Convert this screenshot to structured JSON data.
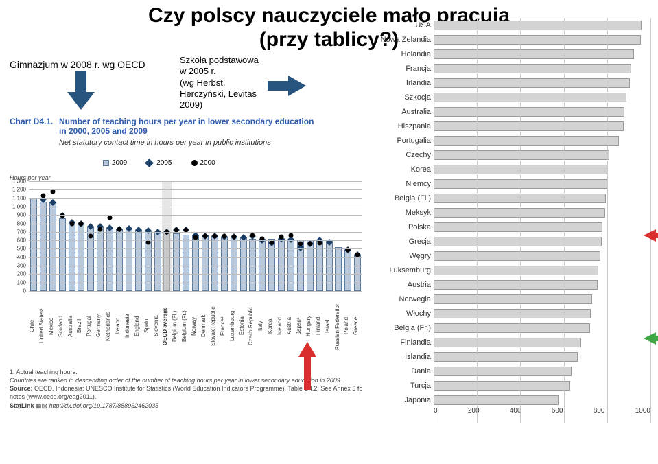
{
  "title_line1": "Czy polscy nauczyciele mało pracują",
  "title_line2": "(przy tablicy?)",
  "left_annotation": "Gimnazjum w 2008 r. wg OECD",
  "right_annotation": "Szkoła podstawowa\nw 2005 r.\n (wg Herbst,\nHerczyński, Levitas\n2009)",
  "chart_label_prefix": "Chart D4.1.",
  "chart_title": "Number of teaching hours per year in lower secondary education\nin 2000, 2005 and 2009",
  "chart_subtitle": "Net statutory contact time in hours per year in public institutions",
  "legend": {
    "y2009": "2009",
    "y2005": "2005",
    "y2000": "2000"
  },
  "y_axis_label": "Hours per year",
  "colors": {
    "bar_fill": "#b9c9dc",
    "bar_border": "#5b7a9f",
    "diamond": "#1a3e66",
    "circle": "#000000",
    "grid": "#bbbbbb",
    "hbar_fill": "#d3d3d3",
    "hbar_border": "#999999",
    "title_blue": "#2e5aac",
    "red_arrow": "#d92f2f",
    "green_arrow": "#3fa845",
    "blue_arrow": "#27547e"
  },
  "bar_chart": {
    "type": "bar",
    "ymin": 0,
    "ymax": 1300,
    "ytick_step": 100,
    "highlight_index": 14,
    "series": [
      {
        "label": "Chile",
        "v": 1100,
        "d": null,
        "c": null
      },
      {
        "label": "United States¹",
        "v": 1060,
        "d": 1080,
        "c": 1130
      },
      {
        "label": "Mexico",
        "v": 1050,
        "d": 1050,
        "c": 1180
      },
      {
        "label": "Scotland",
        "v": 860,
        "d": 890,
        "c": 890
      },
      {
        "label": "Australia",
        "v": 820,
        "d": 815,
        "c": 800
      },
      {
        "label": "Brazil",
        "v": 800,
        "d": 800,
        "c": 800
      },
      {
        "label": "Portugal",
        "v": 760,
        "d": 760,
        "c": 650
      },
      {
        "label": "Germany",
        "v": 760,
        "d": 760,
        "c": 730
      },
      {
        "label": "Netherlands",
        "v": 750,
        "d": 750,
        "c": 870
      },
      {
        "label": "Ireland",
        "v": 735,
        "d": 735,
        "c": 735
      },
      {
        "label": "Indonesia",
        "v": 730,
        "d": 740,
        "c": null
      },
      {
        "label": "England",
        "v": 720,
        "d": 720,
        "c": null
      },
      {
        "label": "Spain",
        "v": 715,
        "d": 715,
        "c": 580
      },
      {
        "label": "Slovenia",
        "v": 700,
        "d": 700,
        "c": null
      },
      {
        "label": "OECD average",
        "v": 690,
        "d": 700,
        "c": 700,
        "highlight": true,
        "bold": true
      },
      {
        "label": "Belgium (Fl.)",
        "v": 680,
        "d": 720,
        "c": 720
      },
      {
        "label": "Belgium (Fr.)",
        "v": 670,
        "d": 725,
        "c": 725
      },
      {
        "label": "Norway",
        "v": 660,
        "d": 660,
        "c": 635
      },
      {
        "label": "Denmark",
        "v": 660,
        "d": 650,
        "c": 650
      },
      {
        "label": "Slovak Republic",
        "v": 650,
        "d": 650,
        "c": 650
      },
      {
        "label": "France¹",
        "v": 645,
        "d": 640,
        "c": 650
      },
      {
        "label": "Luxembourg",
        "v": 640,
        "d": 640,
        "c": 640
      },
      {
        "label": "Estonia",
        "v": 630,
        "d": 630,
        "c": null
      },
      {
        "label": "Czech Republic",
        "v": 620,
        "d": 650,
        "c": 660
      },
      {
        "label": "Italy",
        "v": 620,
        "d": 605,
        "c": 620
      },
      {
        "label": "Korea",
        "v": 620,
        "d": 570,
        "c": 580
      },
      {
        "label": "Iceland",
        "v": 615,
        "d": 615,
        "c": 640
      },
      {
        "label": "Austria",
        "v": 610,
        "d": 610,
        "c": 660
      },
      {
        "label": "Japan¹",
        "v": 600,
        "d": 510,
        "c": 560
      },
      {
        "label": "Hungary",
        "v": 600,
        "d": 560,
        "c": 560
      },
      {
        "label": "Finland",
        "v": 590,
        "d": 600,
        "c": 570
      },
      {
        "label": "Israel",
        "v": 590,
        "d": 580,
        "c": null
      },
      {
        "label": "Russian Federation",
        "v": 520,
        "d": null,
        "c": null
      },
      {
        "label": "Poland",
        "v": 490,
        "d": 490,
        "c": 490
      },
      {
        "label": "Greece",
        "v": 430,
        "d": 430,
        "c": 430
      }
    ]
  },
  "footnote1": "1. Actual teaching hours.",
  "footnote2": "Countries are ranked in descending order of the number of teaching hours per year in lower secondary education in 2009.",
  "footnote3_label": "Source:",
  "footnote3_rest": " OECD. Indonesia: UNESCO Institute for Statistics (World Education Indicators Programme). Table D4.2. See Annex 3 fo notes (www.oecd.org/eag2011).",
  "footnote4_label": "StatLink ",
  "footnote4_url": "http://dx.doi.org/10.1787/888932462035",
  "hbar_chart": {
    "type": "bar_horizontal",
    "xmin": 0,
    "xmax": 1000,
    "xtick_step": 200,
    "items": [
      {
        "label": "USA",
        "v": 960
      },
      {
        "label": "Nowa Zelandia",
        "v": 955
      },
      {
        "label": "Holandia",
        "v": 925
      },
      {
        "label": "Francja",
        "v": 910
      },
      {
        "label": "Irlandia",
        "v": 905
      },
      {
        "label": "Szkocja",
        "v": 890
      },
      {
        "label": "Australia",
        "v": 880
      },
      {
        "label": "Hiszpania",
        "v": 875
      },
      {
        "label": "Portugalia",
        "v": 855
      },
      {
        "label": "Czechy",
        "v": 810
      },
      {
        "label": "Korea",
        "v": 805
      },
      {
        "label": "Niemcy",
        "v": 800
      },
      {
        "label": "Belgia (Fl.)",
        "v": 795
      },
      {
        "label": "Meksyk",
        "v": 790
      },
      {
        "label": "Polska",
        "v": 780
      },
      {
        "label": "Grecja",
        "v": 775
      },
      {
        "label": "Węgry",
        "v": 770
      },
      {
        "label": "Luksemburg",
        "v": 760
      },
      {
        "label": "Austria",
        "v": 755
      },
      {
        "label": "Norwegia",
        "v": 730
      },
      {
        "label": "Włochy",
        "v": 725
      },
      {
        "label": "Belgia (Fr.)",
        "v": 720
      },
      {
        "label": "Finlandia",
        "v": 680
      },
      {
        "label": "Islandia",
        "v": 665
      },
      {
        "label": "Dania",
        "v": 635
      },
      {
        "label": "Turcja",
        "v": 630
      },
      {
        "label": "Japonia",
        "v": 575
      }
    ]
  }
}
